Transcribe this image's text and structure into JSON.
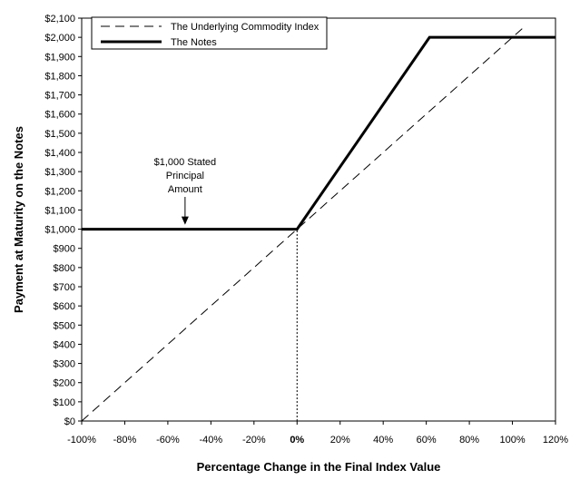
{
  "chart_data": {
    "type": "line",
    "xlabel": "Percentage Change in the Final Index Value",
    "ylabel": "Payment at Maturity on the Notes",
    "xlim": [
      -100,
      120
    ],
    "ylim": [
      0,
      2100
    ],
    "x_ticks": [
      -100,
      -80,
      -60,
      -40,
      -20,
      0,
      20,
      40,
      60,
      80,
      100,
      120
    ],
    "x_tick_labels": [
      "-100%",
      "-80%",
      "-60%",
      "-40%",
      "-20%",
      "0%",
      "20%",
      "40%",
      "60%",
      "80%",
      "100%",
      "120%"
    ],
    "y_ticks": [
      0,
      100,
      200,
      300,
      400,
      500,
      600,
      700,
      800,
      900,
      1000,
      1100,
      1200,
      1300,
      1400,
      1500,
      1600,
      1700,
      1800,
      1900,
      2000,
      2100
    ],
    "y_tick_labels": [
      "$0",
      "$100",
      "$200",
      "$300",
      "$400",
      "$500",
      "$600",
      "$700",
      "$800",
      "$900",
      "$1,000",
      "$1,100",
      "$1,200",
      "$1,300",
      "$1,400",
      "$1,500",
      "$1,600",
      "$1,700",
      "$1,800",
      "$1,900",
      "$2,000",
      "$2,100"
    ],
    "grid": false,
    "legend_position": "top-left",
    "series": [
      {
        "name": "The Underlying Commodity Index",
        "style": "dashed",
        "color": "#000000",
        "x": [
          -100,
          105
        ],
        "y": [
          0,
          2050
        ]
      },
      {
        "name": "The Notes",
        "style": "solid-thick",
        "color": "#000000",
        "x": [
          -100,
          0,
          61.5,
          120
        ],
        "y": [
          1000,
          1000,
          2000,
          2000
        ]
      }
    ],
    "reference_line": {
      "x": 0,
      "style": "dotted",
      "from_y": 0,
      "to_y": 1000
    },
    "annotation": {
      "lines": [
        "$1,000 Stated",
        "Principal",
        "Amount"
      ],
      "arrow_x": -52,
      "arrow_y": 1000
    }
  }
}
